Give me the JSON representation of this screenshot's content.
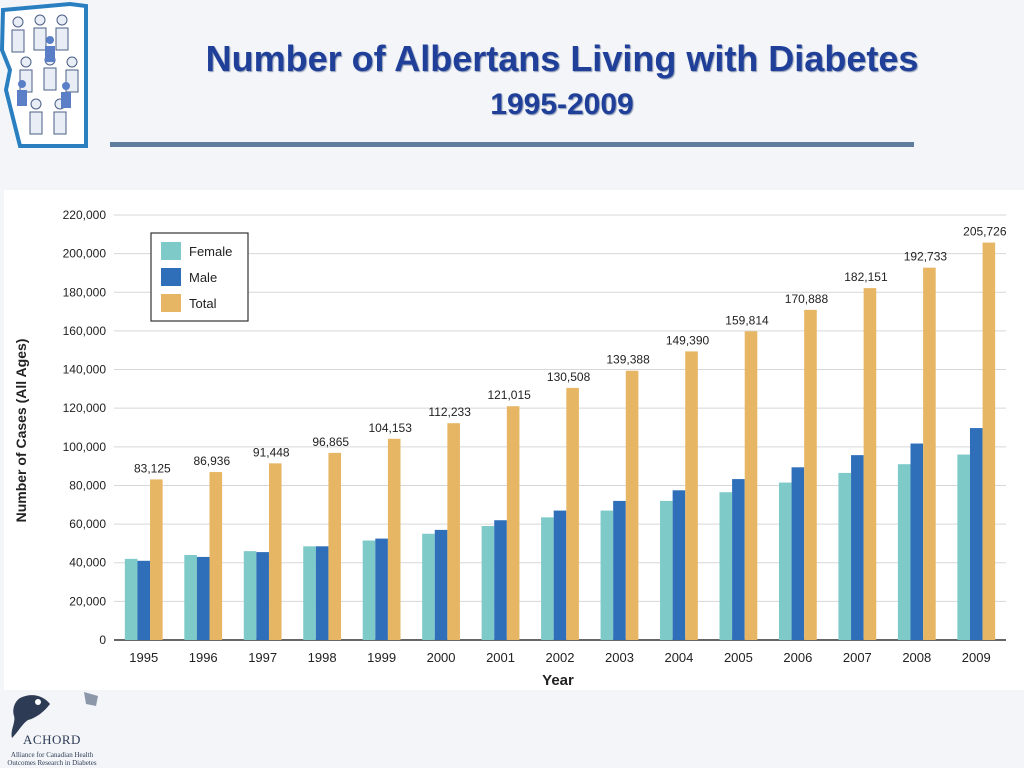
{
  "slide": {
    "title": "Number of Albertans Living with Diabetes",
    "subtitle": "1995-2009"
  },
  "logo": {
    "name": "ACHORD",
    "tagline_1": "Alliance for Canadian Health",
    "tagline_2": "Outcomes Research in Diabetes"
  },
  "colors": {
    "title": "#1f3f99",
    "rule": "#5f7d9d",
    "female": "#7ecac8",
    "male": "#2f6fba",
    "total": "#e6b665"
  },
  "chart_data": {
    "type": "bar",
    "title": "",
    "xlabel": "Year",
    "ylabel": "Number of Cases (All Ages)",
    "categories": [
      "1995",
      "1996",
      "1997",
      "1998",
      "1999",
      "2000",
      "2001",
      "2002",
      "2003",
      "2004",
      "2005",
      "2006",
      "2007",
      "2008",
      "2009"
    ],
    "ylim": [
      0,
      220000
    ],
    "yticks": [
      0,
      20000,
      40000,
      60000,
      80000,
      100000,
      120000,
      140000,
      160000,
      180000,
      200000,
      220000
    ],
    "ytick_labels": [
      "0",
      "20,000",
      "40,000",
      "60,000",
      "80,000",
      "100,000",
      "120,000",
      "140,000",
      "160,000",
      "180,000",
      "200,000",
      "220,000"
    ],
    "grid": true,
    "legend_position": "top-left",
    "series": [
      {
        "name": "Female",
        "color": "#7ecac8",
        "values": [
          42000,
          44000,
          46000,
          48500,
          51500,
          55000,
          59000,
          63500,
          67000,
          72000,
          76500,
          81500,
          86500,
          91000,
          96000
        ]
      },
      {
        "name": "Male",
        "color": "#2f6fba",
        "values": [
          41000,
          43000,
          45500,
          48500,
          52500,
          57000,
          62000,
          67000,
          72000,
          77500,
          83300,
          89400,
          95700,
          101700,
          109700
        ]
      },
      {
        "name": "Total",
        "color": "#e6b665",
        "values": [
          83125,
          86936,
          91448,
          96865,
          104153,
          112233,
          121015,
          130508,
          139388,
          149390,
          159814,
          170888,
          182151,
          192733,
          205726
        ]
      }
    ],
    "data_labels": [
      "83,125",
      "86,936",
      "91,448",
      "96,865",
      "104,153",
      "112,233",
      "121,015",
      "130,508",
      "139,388",
      "149,390",
      "159,814",
      "170,888",
      "182,151",
      "192,733",
      "205,726"
    ]
  }
}
